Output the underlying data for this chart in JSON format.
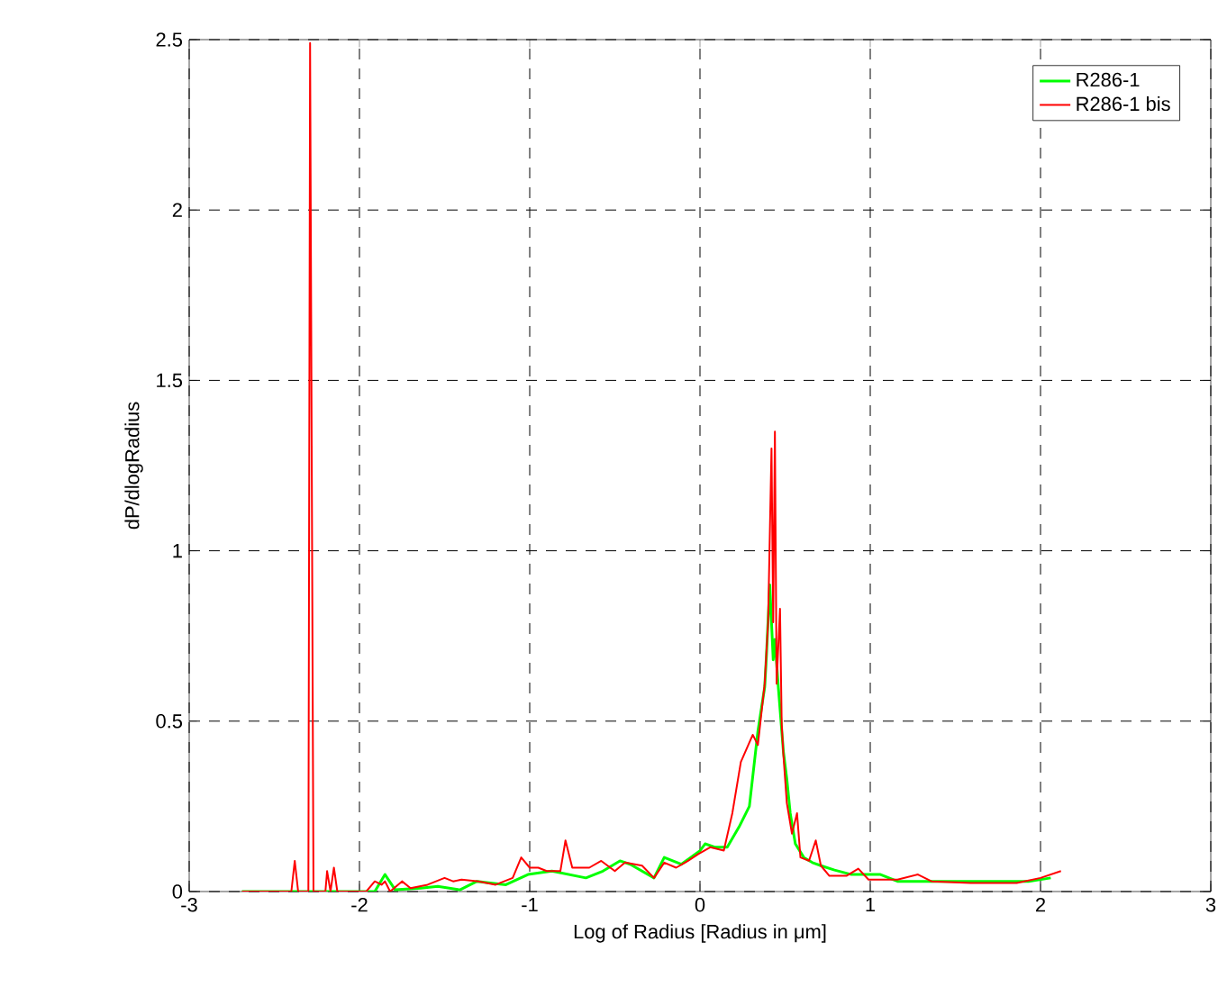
{
  "chart_data": {
    "type": "line",
    "xlabel": "Log of Radius [Radius in μm]",
    "ylabel": "dP/dlogRadius",
    "xlim": [
      -3,
      3
    ],
    "ylim": [
      0,
      2.5
    ],
    "xticks": [
      -3,
      -2,
      -1,
      0,
      1,
      2,
      3
    ],
    "yticks": [
      0,
      0.5,
      1,
      1.5,
      2,
      2.5
    ],
    "grid": true,
    "legend": "top right",
    "line_style": "solid",
    "marker": "none",
    "series": [
      {
        "name": "R286-1",
        "color": "#00ff00",
        "x": [
          -2.69,
          -1.91,
          -1.85,
          -1.79,
          -1.64,
          -1.54,
          -1.41,
          -1.31,
          -1.14,
          -1.01,
          -0.87,
          -0.67,
          -0.57,
          -0.47,
          -0.41,
          -0.27,
          -0.21,
          -0.11,
          0.0,
          0.03,
          0.09,
          0.16,
          0.23,
          0.29,
          0.34,
          0.38,
          0.39,
          0.41,
          0.43,
          0.44,
          0.46,
          0.49,
          0.51,
          0.53,
          0.56,
          0.61,
          0.66,
          0.71,
          0.79,
          0.89,
          1.06,
          1.16,
          1.26,
          1.59,
          1.93,
          2.06
        ],
        "values": [
          0,
          0,
          0.05,
          0.005,
          0.01,
          0.015,
          0.005,
          0.03,
          0.02,
          0.05,
          0.06,
          0.04,
          0.06,
          0.09,
          0.08,
          0.04,
          0.1,
          0.08,
          0.12,
          0.14,
          0.13,
          0.13,
          0.19,
          0.25,
          0.47,
          0.6,
          0.69,
          0.9,
          0.68,
          0.74,
          0.6,
          0.41,
          0.33,
          0.23,
          0.14,
          0.1,
          0.085,
          0.076,
          0.063,
          0.05,
          0.05,
          0.03,
          0.03,
          0.03,
          0.03,
          0.04
        ]
      },
      {
        "name": "R286-1 bis",
        "color": "#ff0000",
        "x": [
          -2.69,
          -2.4,
          -2.38,
          -2.36,
          -2.3,
          -2.29,
          -2.27,
          -2.2,
          -2.19,
          -2.17,
          -2.15,
          -2.13,
          -1.96,
          -1.91,
          -1.87,
          -1.85,
          -1.82,
          -1.75,
          -1.7,
          -1.6,
          -1.5,
          -1.45,
          -1.4,
          -1.3,
          -1.2,
          -1.1,
          -1.05,
          -1.0,
          -0.95,
          -0.9,
          -0.82,
          -0.79,
          -0.75,
          -0.65,
          -0.58,
          -0.5,
          -0.44,
          -0.34,
          -0.27,
          -0.21,
          -0.14,
          -0.07,
          -0.01,
          0.06,
          0.14,
          0.19,
          0.24,
          0.31,
          0.34,
          0.38,
          0.4,
          0.42,
          0.43,
          0.44,
          0.45,
          0.47,
          0.48,
          0.49,
          0.51,
          0.54,
          0.57,
          0.59,
          0.64,
          0.68,
          0.71,
          0.76,
          0.86,
          0.93,
          0.99,
          1.16,
          1.28,
          1.36,
          1.59,
          1.86,
          2.0,
          2.12
        ],
        "values": [
          0,
          0,
          0.09,
          0,
          0,
          2.49,
          0,
          0,
          0.06,
          0,
          0.07,
          0,
          0,
          0.03,
          0.02,
          0.03,
          0,
          0.03,
          0.01,
          0.02,
          0.04,
          0.03,
          0.035,
          0.03,
          0.02,
          0.04,
          0.1,
          0.07,
          0.07,
          0.06,
          0.06,
          0.15,
          0.07,
          0.07,
          0.09,
          0.06,
          0.085,
          0.076,
          0.04,
          0.085,
          0.07,
          0.09,
          0.11,
          0.13,
          0.12,
          0.23,
          0.38,
          0.46,
          0.43,
          0.61,
          0.79,
          1.3,
          0.79,
          1.35,
          0.61,
          0.83,
          0.49,
          0.4,
          0.26,
          0.17,
          0.23,
          0.1,
          0.09,
          0.15,
          0.076,
          0.046,
          0.046,
          0.067,
          0.035,
          0.035,
          0.05,
          0.03,
          0.025,
          0.025,
          0.04,
          0.06
        ]
      }
    ]
  }
}
